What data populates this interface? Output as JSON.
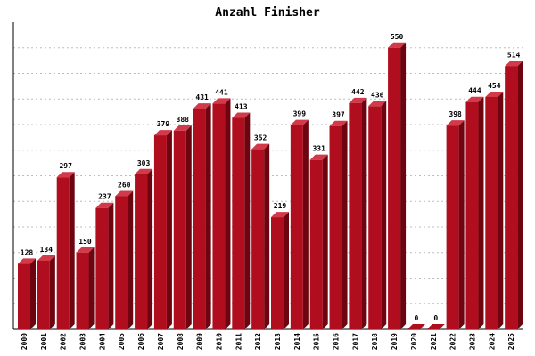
{
  "colors": {
    "bar_front": "#b00d1f",
    "bar_side": "#6e0410",
    "bar_top": "#d23a4a",
    "grid": "#bdbdbd",
    "axis": "#000000"
  },
  "chart_data": {
    "type": "bar",
    "title": "Anzahl Finisher",
    "xlabel": "",
    "ylabel": "",
    "ylim": [
      0,
      600
    ],
    "grid": true,
    "grid_step": 50,
    "categories": [
      "2000",
      "2001",
      "2002",
      "2003",
      "2004",
      "2005",
      "2006",
      "2007",
      "2008",
      "2009",
      "2010",
      "2011",
      "2012",
      "2013",
      "2014",
      "2015",
      "2016",
      "2017",
      "2018",
      "2019",
      "2020",
      "2021",
      "2022",
      "2023",
      "2024",
      "2025"
    ],
    "values": [
      128,
      134,
      297,
      150,
      237,
      260,
      303,
      379,
      388,
      431,
      441,
      413,
      352,
      219,
      399,
      331,
      397,
      442,
      436,
      550,
      0,
      0,
      398,
      444,
      454,
      514
    ]
  }
}
